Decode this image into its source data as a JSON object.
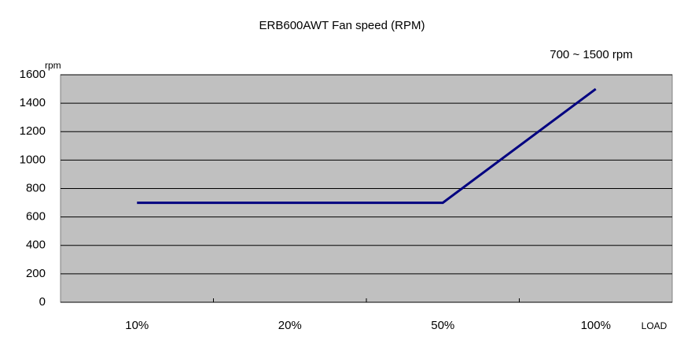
{
  "chart_data": {
    "type": "line",
    "title": "ERB600AWT Fan speed (RPM)",
    "annotation": "700 ~ 1500 rpm",
    "y_label": "rpm",
    "x_label": "LOAD",
    "categories": [
      "10%",
      "20%",
      "50%",
      "100%"
    ],
    "series": [
      {
        "name": "Fan speed",
        "color": "#000080",
        "values": [
          700,
          700,
          700,
          1500
        ]
      }
    ],
    "ylim": [
      0,
      1600
    ],
    "yticks": [
      0,
      200,
      400,
      600,
      800,
      1000,
      1200,
      1400,
      1600
    ],
    "grid": true,
    "plot_color": "#c0c0c0"
  }
}
